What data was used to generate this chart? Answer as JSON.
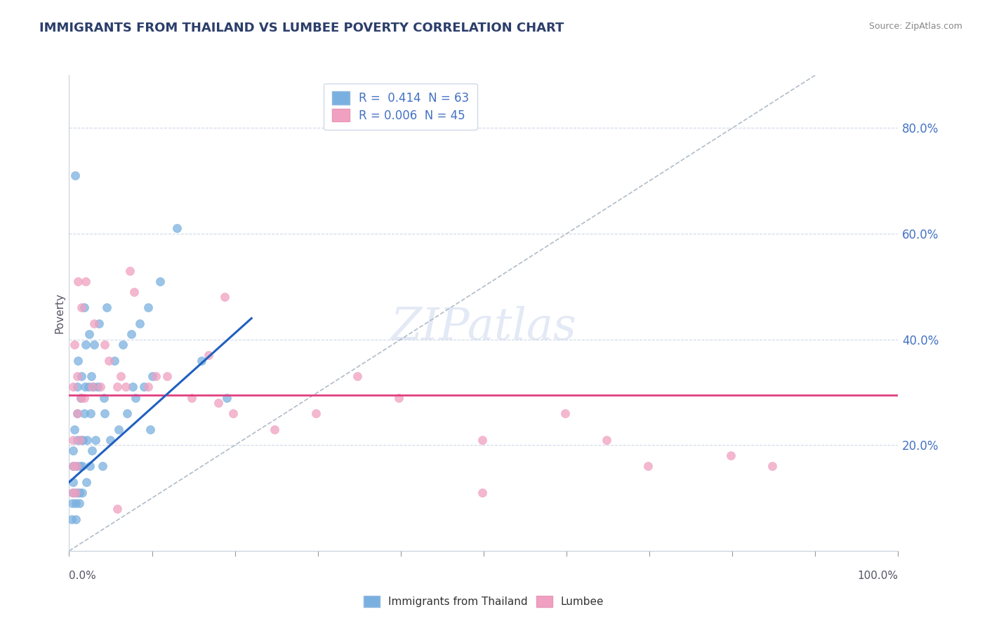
{
  "title": "IMMIGRANTS FROM THAILAND VS LUMBEE POVERTY CORRELATION CHART",
  "source": "Source: ZipAtlas.com",
  "ylabel": "Poverty",
  "ytick_values": [
    0.0,
    0.2,
    0.4,
    0.6,
    0.8
  ],
  "legend_label_bottom": [
    "Immigrants from Thailand",
    "Lumbee"
  ],
  "blue_color": "#7ab0e0",
  "pink_color": "#f0a0c0",
  "blue_scatter_x": [
    0.003,
    0.004,
    0.005,
    0.005,
    0.005,
    0.005,
    0.006,
    0.008,
    0.008,
    0.009,
    0.009,
    0.01,
    0.01,
    0.01,
    0.011,
    0.012,
    0.012,
    0.013,
    0.014,
    0.014,
    0.015,
    0.016,
    0.016,
    0.017,
    0.018,
    0.019,
    0.02,
    0.021,
    0.022,
    0.023,
    0.024,
    0.025,
    0.026,
    0.027,
    0.028,
    0.029,
    0.03,
    0.032,
    0.034,
    0.036,
    0.04,
    0.042,
    0.045,
    0.05,
    0.055,
    0.06,
    0.065,
    0.07,
    0.075,
    0.08,
    0.085,
    0.09,
    0.095,
    0.1,
    0.11,
    0.13,
    0.16,
    0.19,
    0.043,
    0.077,
    0.098,
    0.007,
    0.018
  ],
  "blue_scatter_y": [
    0.06,
    0.09,
    0.11,
    0.13,
    0.16,
    0.19,
    0.23,
    0.06,
    0.09,
    0.11,
    0.16,
    0.21,
    0.26,
    0.31,
    0.36,
    0.09,
    0.11,
    0.16,
    0.21,
    0.29,
    0.33,
    0.11,
    0.16,
    0.21,
    0.26,
    0.31,
    0.39,
    0.13,
    0.21,
    0.31,
    0.41,
    0.16,
    0.26,
    0.33,
    0.19,
    0.31,
    0.39,
    0.21,
    0.31,
    0.43,
    0.16,
    0.29,
    0.46,
    0.21,
    0.36,
    0.23,
    0.39,
    0.26,
    0.41,
    0.29,
    0.43,
    0.31,
    0.46,
    0.33,
    0.51,
    0.61,
    0.36,
    0.29,
    0.26,
    0.31,
    0.23,
    0.71,
    0.46
  ],
  "pink_scatter_x": [
    0.004,
    0.005,
    0.005,
    0.005,
    0.006,
    0.008,
    0.009,
    0.01,
    0.01,
    0.011,
    0.013,
    0.014,
    0.015,
    0.018,
    0.02,
    0.028,
    0.03,
    0.038,
    0.048,
    0.058,
    0.062,
    0.068,
    0.078,
    0.095,
    0.105,
    0.118,
    0.148,
    0.198,
    0.248,
    0.298,
    0.348,
    0.398,
    0.498,
    0.598,
    0.698,
    0.798,
    0.848,
    0.498,
    0.648,
    0.073,
    0.043,
    0.168,
    0.188,
    0.058,
    0.18
  ],
  "pink_scatter_y": [
    0.11,
    0.16,
    0.21,
    0.31,
    0.39,
    0.11,
    0.16,
    0.26,
    0.33,
    0.51,
    0.21,
    0.29,
    0.46,
    0.29,
    0.51,
    0.31,
    0.43,
    0.31,
    0.36,
    0.31,
    0.33,
    0.31,
    0.49,
    0.31,
    0.33,
    0.33,
    0.29,
    0.26,
    0.23,
    0.26,
    0.33,
    0.29,
    0.11,
    0.26,
    0.16,
    0.18,
    0.16,
    0.21,
    0.21,
    0.53,
    0.39,
    0.37,
    0.48,
    0.08,
    0.28
  ],
  "grid_color": "#d0d8e8",
  "title_color": "#2c3e6b",
  "axis_label_color": "#4472c4",
  "background_color": "#ffffff"
}
